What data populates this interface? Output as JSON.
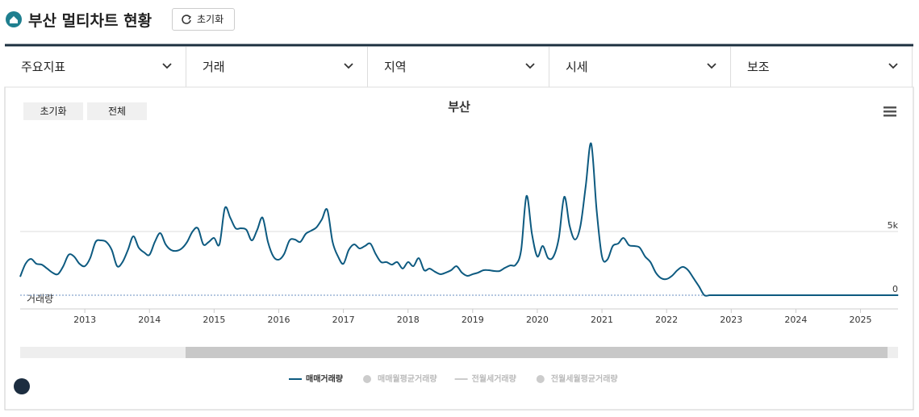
{
  "header": {
    "title": "부산 멀티차트 현황",
    "reset_button": "초기화"
  },
  "tabs": [
    "주요지표",
    "거래",
    "지역",
    "시세",
    "보조"
  ],
  "chart_buttons": [
    "초기화",
    "전체"
  ],
  "chart_data": {
    "type": "line",
    "title": "부산",
    "y_axis_label": "거래량",
    "x": [
      2012,
      2012.083,
      2012.167,
      2012.25,
      2012.333,
      2012.417,
      2012.5,
      2012.583,
      2012.667,
      2012.75,
      2012.833,
      2012.917,
      2013,
      2013.083,
      2013.167,
      2013.25,
      2013.333,
      2013.417,
      2013.5,
      2013.583,
      2013.667,
      2013.75,
      2013.833,
      2013.917,
      2014,
      2014.083,
      2014.167,
      2014.25,
      2014.333,
      2014.417,
      2014.5,
      2014.583,
      2014.667,
      2014.75,
      2014.833,
      2014.917,
      2015,
      2015.083,
      2015.167,
      2015.25,
      2015.333,
      2015.417,
      2015.5,
      2015.583,
      2015.667,
      2015.75,
      2015.833,
      2015.917,
      2016,
      2016.083,
      2016.167,
      2016.25,
      2016.333,
      2016.417,
      2016.5,
      2016.583,
      2016.667,
      2016.75,
      2016.833,
      2016.917,
      2017,
      2017.083,
      2017.167,
      2017.25,
      2017.333,
      2017.417,
      2017.5,
      2017.583,
      2017.667,
      2017.75,
      2017.833,
      2017.917,
      2018,
      2018.083,
      2018.167,
      2018.25,
      2018.333,
      2018.417,
      2018.5,
      2018.583,
      2018.667,
      2018.75,
      2018.833,
      2018.917,
      2019,
      2019.083,
      2019.167,
      2019.25,
      2019.333,
      2019.417,
      2019.5,
      2019.583,
      2019.667,
      2019.75,
      2019.833,
      2019.917,
      2020,
      2020.083,
      2020.167,
      2020.25,
      2020.333,
      2020.417,
      2020.5,
      2020.583,
      2020.667,
      2020.75,
      2020.833,
      2020.917,
      2021,
      2021.083,
      2021.167,
      2021.25,
      2021.333,
      2021.417,
      2021.5,
      2021.583,
      2021.667,
      2021.75,
      2021.833,
      2021.917,
      2022,
      2022.083,
      2022.167,
      2022.25,
      2022.333,
      2022.417,
      2022.5,
      2022.583,
      2022.667,
      2022.75,
      2022.833,
      2022.917,
      2023,
      2023.083,
      2023.167,
      2023.25,
      2023.333,
      2023.417,
      2023.5,
      2023.583,
      2023.667,
      2023.75,
      2023.833,
      2023.917,
      2024,
      2024.083,
      2024.167,
      2024.25,
      2024.333,
      2024.417,
      2024.5,
      2024.583,
      2024.667,
      2024.75,
      2024.833,
      2024.917,
      2025,
      2025.083,
      2025.167,
      2025.25,
      2025.333,
      2025.417,
      2025.5,
      2025.583
    ],
    "series": [
      {
        "name": "매매거래량",
        "color": "#0d5a80",
        "values": [
          1450,
          2470,
          2850,
          2470,
          2400,
          2090,
          1770,
          1650,
          2280,
          3170,
          3040,
          2470,
          2280,
          2910,
          4180,
          4300,
          4180,
          3550,
          2280,
          2600,
          3550,
          4620,
          3740,
          3360,
          3170,
          4180,
          4870,
          3990,
          3550,
          3480,
          3670,
          4180,
          5000,
          5250,
          3990,
          4180,
          4490,
          3990,
          6840,
          6080,
          5250,
          5250,
          5130,
          4300,
          5130,
          6080,
          4180,
          3040,
          2790,
          3230,
          4300,
          4370,
          4180,
          4810,
          5060,
          5320,
          5950,
          6710,
          4180,
          3040,
          2470,
          3550,
          3990,
          3670,
          3860,
          4050,
          3230,
          2600,
          2600,
          2400,
          2600,
          2090,
          2600,
          2280,
          2910,
          1960,
          2090,
          1840,
          1650,
          1770,
          1960,
          2280,
          1770,
          1520,
          1650,
          1770,
          1960,
          1960,
          1900,
          1900,
          2150,
          2340,
          2400,
          3550,
          7790,
          4810,
          3040,
          3860,
          2910,
          3040,
          4490,
          7720,
          5440,
          4370,
          5440,
          8610,
          11900,
          6710,
          3040,
          2790,
          3860,
          4050,
          4490,
          3930,
          3860,
          3740,
          3040,
          2600,
          1770,
          1330,
          1270,
          1520,
          1960,
          2220,
          1960,
          1330,
          700,
          0,
          0,
          0,
          0,
          0,
          0,
          0,
          0,
          0,
          0,
          0,
          0,
          0,
          0,
          0,
          0,
          0,
          0,
          0,
          0,
          0,
          0,
          0,
          0,
          0,
          0,
          0,
          0,
          0,
          0,
          0,
          0,
          0,
          0,
          0,
          0,
          0
        ]
      }
    ],
    "inactive_legend": [
      "매매월평균거래량",
      "전월세거래량",
      "전월세월평균거래량"
    ],
    "xlim": [
      2012,
      2025.58
    ],
    "xticks": [
      2013,
      2014,
      2015,
      2016,
      2017,
      2018,
      2019,
      2020,
      2021,
      2022,
      2023,
      2024,
      2025
    ],
    "ylim": [
      -1000,
      13000
    ],
    "yticks": [
      0,
      {
        "value": 5000,
        "label": "5k"
      }
    ],
    "grid": true
  }
}
